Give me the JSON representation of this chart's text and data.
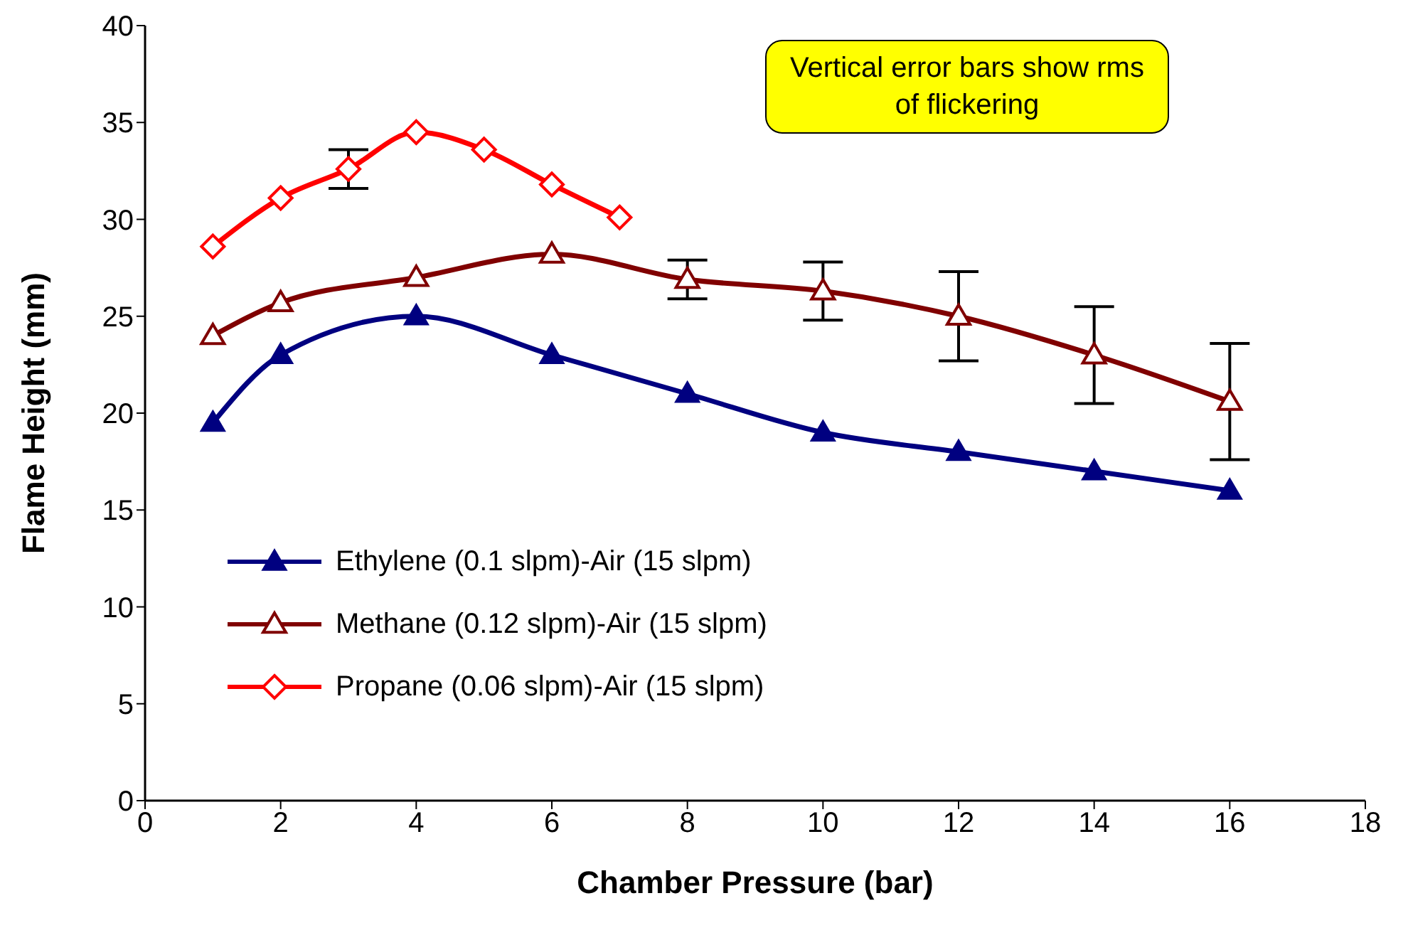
{
  "chart_data": {
    "type": "line",
    "xlabel": "Chamber Pressure (bar)",
    "ylabel": "Flame Height (mm)",
    "annotations": [
      "Vertical error bars show rms of flickering"
    ],
    "xlim": [
      0,
      18
    ],
    "xticks": [
      0,
      2,
      4,
      6,
      8,
      10,
      12,
      14,
      16,
      18
    ],
    "ylim": [
      0,
      40
    ],
    "yticks": [
      0,
      5,
      10,
      15,
      20,
      25,
      30,
      35,
      40
    ],
    "legend": "bottom left",
    "line_style": "solid",
    "series": [
      {
        "name": "Ethylene (0.1 slpm)-Air (15 slpm)",
        "color": "#000080",
        "marker": "triangle",
        "x": [
          1,
          2,
          4,
          6,
          8,
          10,
          12,
          14,
          16
        ],
        "values": [
          19.5,
          23,
          25,
          23,
          21,
          19,
          18,
          17,
          16
        ]
      },
      {
        "name": "Methane (0.12 slpm)-Air (15 slpm)",
        "color": "#800000",
        "marker": "triangle-open",
        "x": [
          1,
          2,
          4,
          6,
          8,
          10,
          12,
          14,
          16
        ],
        "values": [
          24,
          25.7,
          27,
          28.2,
          26.9,
          26.3,
          25,
          23,
          20.6
        ],
        "errors": [
          null,
          null,
          null,
          null,
          1,
          1.5,
          2.3,
          2.5,
          3
        ]
      },
      {
        "name": "Propane (0.06 slpm)-Air (15 slpm)",
        "color": "#ff0000",
        "marker": "diamond-open",
        "x": [
          1,
          2,
          3,
          4,
          5,
          6,
          7
        ],
        "values": [
          28.6,
          31.1,
          32.6,
          34.5,
          33.6,
          31.8,
          30.1
        ],
        "errors": [
          null,
          null,
          1,
          null,
          null,
          null,
          null
        ]
      }
    ]
  }
}
